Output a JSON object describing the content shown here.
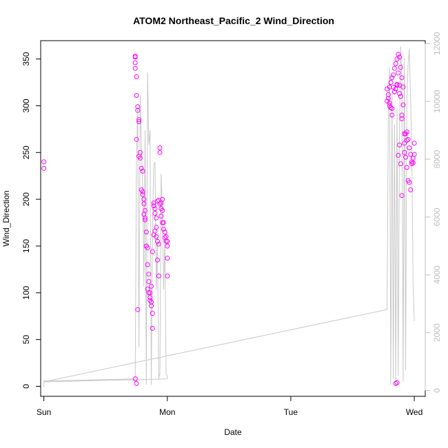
{
  "chart_data": {
    "type": "scatter",
    "title": "ATOM2 Northeast_Pacific_2 Wind_Direction",
    "xlabel": "Date",
    "ylabel": "Wind_Direction",
    "x_ticks": [
      "Sun",
      "Mon",
      "Tue",
      "Wed"
    ],
    "x_range_days": [
      -0.026,
      3.089
    ],
    "ylim": [
      -10.7,
      369.6
    ],
    "y_ticks": [
      0,
      50,
      100,
      150,
      200,
      250,
      300,
      350
    ],
    "y2_ticks": [
      0,
      2000,
      4000,
      6000,
      8000,
      10000,
      12000
    ],
    "y2lim": [
      -200,
      12100
    ],
    "colors": {
      "points": "#ff00ff",
      "line": "#c8c8c8",
      "right_axis": "#bdbdbd"
    },
    "grid": false,
    "series": [
      {
        "kind": "points",
        "x": [
          0.0,
          0.0,
          0.74,
          0.74,
          0.74,
          0.74,
          0.75,
          0.75,
          0.76,
          0.76,
          0.75,
          0.77,
          0.77,
          0.77,
          0.78,
          0.78,
          0.76,
          0.79,
          0.8,
          0.8,
          0.81,
          0.81,
          0.82,
          0.82,
          0.83,
          0.83,
          0.84,
          0.84,
          0.85,
          0.85,
          0.86,
          0.86,
          0.87,
          0.87,
          0.88,
          0.88,
          0.89,
          0.89,
          0.9,
          0.9,
          0.91,
          0.91,
          0.92,
          0.92,
          0.93,
          0.93,
          0.94,
          0.94,
          0.95,
          0.95,
          0.96,
          0.96,
          0.97,
          0.98,
          0.99,
          1.0,
          1.0,
          1.0,
          1.0,
          0.79,
          0.8,
          0.81,
          0.82,
          0.83,
          0.84,
          0.85,
          0.86,
          0.87,
          0.88,
          0.89,
          0.9,
          0.91,
          0.92,
          0.93,
          0.94,
          0.95,
          0.96,
          0.97,
          0.98,
          0.99,
          0.74,
          0.75,
          2.78,
          2.78,
          2.79,
          2.79,
          2.8,
          2.8,
          2.81,
          2.81,
          2.82,
          2.82,
          2.83,
          2.83,
          2.84,
          2.84,
          2.85,
          2.85,
          2.86,
          2.86,
          2.87,
          2.87,
          2.88,
          2.88,
          2.89,
          2.89,
          2.9,
          2.9,
          2.91,
          2.91,
          2.92,
          2.92,
          2.93,
          2.93,
          2.94,
          2.94,
          2.95,
          2.95,
          2.96,
          2.96,
          2.97,
          2.97,
          2.98,
          2.98,
          2.99,
          2.99,
          3.0,
          3.0,
          2.8,
          2.82,
          2.84,
          2.86,
          2.88,
          2.9,
          2.92,
          2.94,
          2.85,
          2.86,
          2.87,
          2.88,
          2.89,
          2.9
        ],
        "y": [
          240,
          233,
          353,
          352,
          346,
          340,
          331,
          311,
          299,
          295,
          264,
          285,
          283,
          246,
          244,
          250,
          82,
          233,
          230,
          205,
          200,
          195,
          188,
          180,
          165,
          150,
          148,
          130,
          120,
          112,
          100,
          95,
          90,
          86,
          78,
          62,
          196,
          193,
          190,
          185,
          170,
          160,
          155,
          135,
          152,
          118,
          255,
          250,
          196,
          190,
          200,
          188,
          175,
          165,
          160,
          155,
          150,
          137,
          118,
          210,
          208,
          184,
          178,
          150,
          104,
          100,
          92,
          107,
          144,
          162,
          166,
          180,
          198,
          199,
          195,
          182,
          175,
          168,
          159,
          155,
          8,
          3,
          318,
          305,
          312,
          308,
          320,
          300,
          325,
          298,
          330,
          290,
          333,
          320,
          340,
          315,
          345,
          318,
          350,
          323,
          355,
          335,
          352,
          322,
          341,
          310,
          330,
          290,
          320,
          301,
          260,
          250,
          270,
          245,
          272,
          234,
          264,
          220,
          255,
          218,
          248,
          210,
          240,
          238,
          244,
          239,
          260,
          248,
          303,
          297,
          315,
          322,
          313,
          286,
          270,
          263,
          3,
          4,
          247,
          258,
          238,
          204
        ],
        "marker": "circle-open",
        "color": "#ff00ff"
      },
      {
        "kind": "line",
        "axis": "right",
        "x": [
          0.0,
          0.0,
          0.74,
          0.75,
          0.76,
          0.77,
          0.78,
          0.79,
          0.8,
          0.81,
          0.82,
          0.83,
          0.84,
          0.85,
          0.86,
          0.87,
          0.88,
          0.89,
          0.9,
          0.91,
          0.92,
          0.93,
          0.94,
          0.95,
          0.96,
          0.97,
          0.98,
          0.99,
          1.0,
          1.0,
          0.0,
          2.78,
          2.79,
          2.8,
          2.81,
          2.82,
          2.83,
          2.84,
          2.85,
          2.86,
          2.87,
          2.88,
          2.89,
          2.9,
          2.91,
          2.92,
          2.93,
          2.94,
          2.95,
          2.96,
          2.97,
          2.98,
          2.99,
          3.0
        ],
        "y": [
          130,
          330,
          400,
          8000,
          9800,
          1500,
          10200,
          8500,
          7000,
          3600,
          9000,
          200,
          11000,
          8500,
          9000,
          200,
          5700,
          7800,
          7900,
          3500,
          5300,
          400,
          600,
          7500,
          6200,
          3500,
          5200,
          600,
          500,
          400,
          300,
          2800,
          9500,
          11200,
          200,
          10300,
          400,
          9200,
          300,
          9800,
          500,
          9000,
          11900,
          10700,
          300,
          11500,
          700,
          10000,
          11300,
          11800,
          10100,
          8300,
          3700,
          2400
        ]
      }
    ]
  }
}
